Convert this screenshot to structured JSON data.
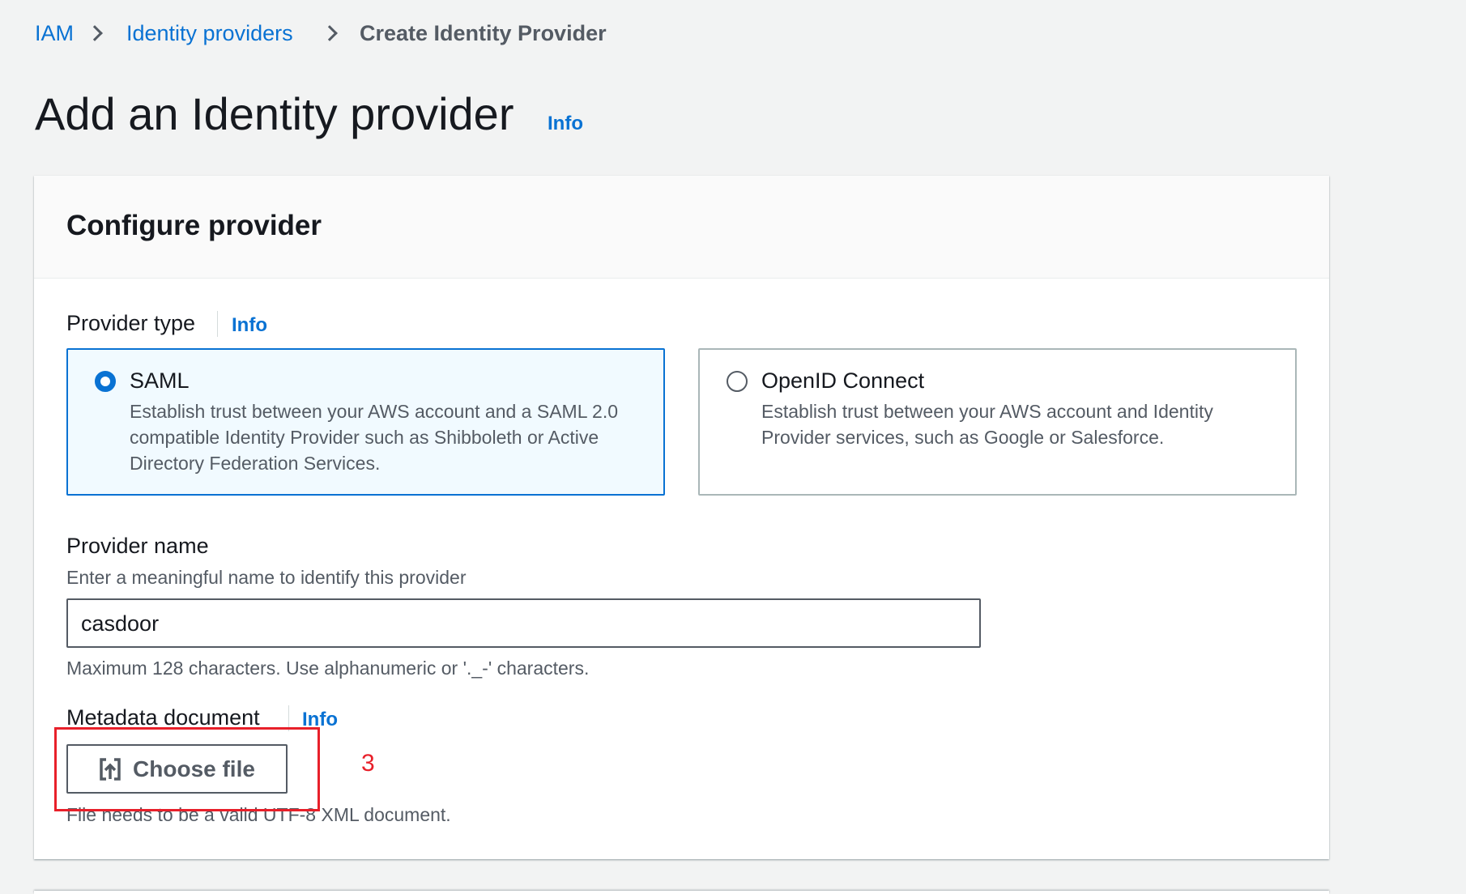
{
  "breadcrumb": [
    "IAM",
    "Identity providers",
    "Create Identity Provider"
  ],
  "page": {
    "title": "Add an Identity provider",
    "info": "Info"
  },
  "card": {
    "title": "Configure provider",
    "provider_type": {
      "label": "Provider type",
      "info": "Info",
      "options": [
        {
          "label": "SAML",
          "description": "Establish trust between your AWS account and a SAML 2.0 compatible Identity Provider such as Shibboleth or Active Directory Federation Services.",
          "selected": true
        },
        {
          "label": "OpenID Connect",
          "description": "Establish trust between your AWS account and Identity Provider services, such as Google or Salesforce.",
          "selected": false
        }
      ]
    },
    "provider_name": {
      "label": "Provider name",
      "hint": "Enter a meaningful name to identify this provider",
      "value": "casdoor",
      "constraint": "Maximum 128 characters. Use alphanumeric or '._-' characters."
    },
    "metadata": {
      "label": "Metadata document",
      "info": "Info",
      "button": "Choose file",
      "icon": "upload-icon",
      "constraint": "File needs to be a valid UTF-8 XML document."
    }
  },
  "annotation": {
    "label": "3",
    "color": "#e8202a"
  },
  "colors": {
    "accent": "#0972d3"
  }
}
